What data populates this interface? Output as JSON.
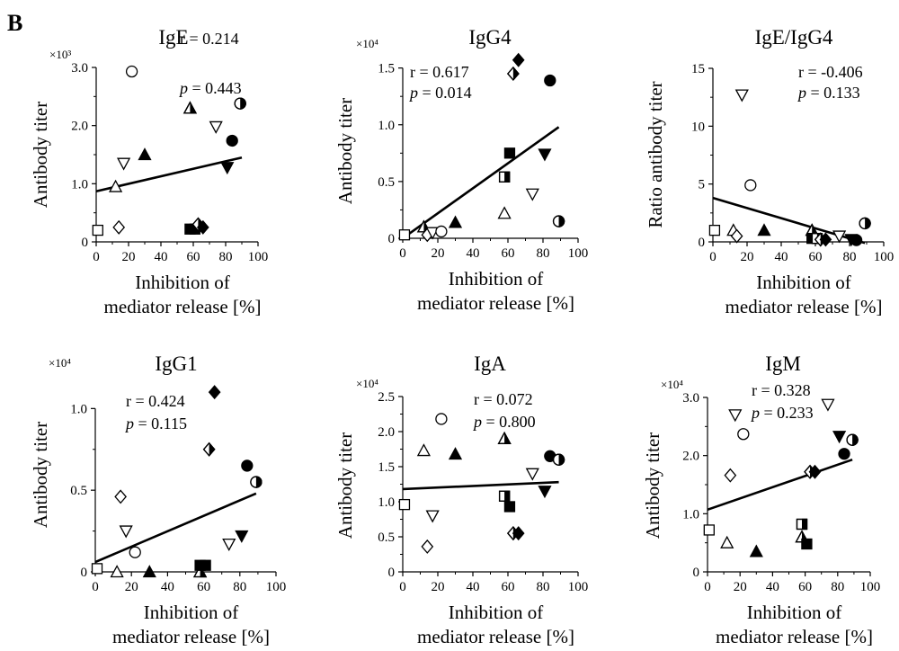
{
  "panel_label": "B",
  "chart_data": [
    {
      "type": "scatter",
      "title": "IgE",
      "ylabel": "Antibody titer",
      "xlabel_lines": [
        "Inhibition of",
        "mediator release [%]"
      ],
      "multiplier_label": "×10³",
      "xlim": [
        0,
        100
      ],
      "ylim": [
        0,
        3.0
      ],
      "x_ticks": [
        0,
        20,
        40,
        60,
        80,
        100
      ],
      "y_ticks": [
        0,
        1.0,
        2.0,
        3.0
      ],
      "y_tick_labels": [
        "0",
        "1.0",
        "2.0",
        "3.0"
      ],
      "stats": {
        "r_label": "r = 0.214",
        "p_prefix": "p",
        "p_rest": " = 0.443"
      },
      "regression": {
        "x": [
          0,
          90
        ],
        "y": [
          0.87,
          1.45
        ]
      },
      "points": [
        {
          "x": 1,
          "y": 0.2,
          "marker": "square-open"
        },
        {
          "x": 12,
          "y": 0.95,
          "marker": "triangle-open"
        },
        {
          "x": 14,
          "y": 0.25,
          "marker": "diamond-open"
        },
        {
          "x": 17,
          "y": 1.35,
          "marker": "triangle-down-open"
        },
        {
          "x": 22,
          "y": 2.93,
          "marker": "circle-open"
        },
        {
          "x": 30,
          "y": 1.5,
          "marker": "triangle"
        },
        {
          "x": 58,
          "y": 2.3,
          "marker": "triangle-half"
        },
        {
          "x": 58,
          "y": 0.22,
          "marker": "square"
        },
        {
          "x": 61,
          "y": 0.22,
          "marker": "square"
        },
        {
          "x": 63,
          "y": 0.3,
          "marker": "diamond-half"
        },
        {
          "x": 66,
          "y": 0.25,
          "marker": "diamond"
        },
        {
          "x": 74,
          "y": 1.98,
          "marker": "triangle-down-open"
        },
        {
          "x": 81,
          "y": 1.28,
          "marker": "triangle-down"
        },
        {
          "x": 84,
          "y": 1.74,
          "marker": "circle"
        },
        {
          "x": 89,
          "y": 2.38,
          "marker": "circle-half"
        }
      ]
    },
    {
      "type": "scatter",
      "title": "IgG4",
      "ylabel": "Antibody titer",
      "xlabel_lines": [
        "Inhibition of",
        "mediator release [%]"
      ],
      "multiplier_label": "×10⁴",
      "xlim": [
        0,
        100
      ],
      "ylim": [
        0,
        1.6
      ],
      "x_ticks": [
        0,
        20,
        40,
        60,
        80,
        100
      ],
      "y_ticks": [
        0,
        0.5,
        1.0,
        1.5
      ],
      "y_tick_labels": [
        "0",
        "0.5",
        "1.0",
        "1.5"
      ],
      "stats": {
        "r_label": "r = 0.617",
        "p_prefix": "p",
        "p_rest": " = 0.014"
      },
      "regression": {
        "x": [
          0,
          89
        ],
        "y": [
          0.0,
          0.98
        ]
      },
      "points": [
        {
          "x": 1,
          "y": 0.03,
          "marker": "square-open"
        },
        {
          "x": 12,
          "y": 0.1,
          "marker": "triangle-half"
        },
        {
          "x": 14,
          "y": 0.03,
          "marker": "diamond-open"
        },
        {
          "x": 17,
          "y": 0.05,
          "marker": "triangle-down-open"
        },
        {
          "x": 22,
          "y": 0.06,
          "marker": "circle-open"
        },
        {
          "x": 30,
          "y": 0.14,
          "marker": "triangle"
        },
        {
          "x": 58,
          "y": 0.22,
          "marker": "triangle-open"
        },
        {
          "x": 58,
          "y": 0.54,
          "marker": "square-half"
        },
        {
          "x": 61,
          "y": 0.75,
          "marker": "square"
        },
        {
          "x": 63,
          "y": 1.45,
          "marker": "diamond-half"
        },
        {
          "x": 66,
          "y": 1.57,
          "marker": "diamond"
        },
        {
          "x": 74,
          "y": 0.39,
          "marker": "triangle-down-open"
        },
        {
          "x": 81,
          "y": 0.74,
          "marker": "triangle-down"
        },
        {
          "x": 84,
          "y": 1.39,
          "marker": "circle"
        },
        {
          "x": 89,
          "y": 0.15,
          "marker": "circle-half"
        }
      ]
    },
    {
      "type": "scatter",
      "title": "IgE/IgG4",
      "ylabel": "Ratio antibody titer",
      "xlabel_lines": [
        "Inhibition of",
        "mediator release [%]"
      ],
      "multiplier_label": "",
      "xlim": [
        0,
        100
      ],
      "ylim": [
        0,
        15
      ],
      "x_ticks": [
        0,
        20,
        40,
        60,
        80,
        100
      ],
      "y_ticks": [
        0,
        5,
        10,
        15
      ],
      "y_tick_labels": [
        "0",
        "5",
        "10",
        "15"
      ],
      "stats": {
        "r_label": "r = -0.406",
        "p_prefix": "p",
        "p_rest": " = 0.133"
      },
      "regression": {
        "x": [
          0,
          89
        ],
        "y": [
          3.8,
          -0.1
        ]
      },
      "points": [
        {
          "x": 1,
          "y": 1.0,
          "marker": "square-open"
        },
        {
          "x": 12,
          "y": 1.0,
          "marker": "triangle-open"
        },
        {
          "x": 14,
          "y": 0.5,
          "marker": "diamond-open"
        },
        {
          "x": 17,
          "y": 12.7,
          "marker": "triangle-down-open"
        },
        {
          "x": 22,
          "y": 4.9,
          "marker": "circle-open"
        },
        {
          "x": 30,
          "y": 1.0,
          "marker": "triangle"
        },
        {
          "x": 58,
          "y": 1.0,
          "marker": "triangle-half"
        },
        {
          "x": 58,
          "y": 0.3,
          "marker": "square"
        },
        {
          "x": 61,
          "y": 0.3,
          "marker": "square-half"
        },
        {
          "x": 63,
          "y": 0.2,
          "marker": "diamond-half"
        },
        {
          "x": 66,
          "y": 0.2,
          "marker": "diamond"
        },
        {
          "x": 74,
          "y": 0.5,
          "marker": "triangle-down-open"
        },
        {
          "x": 81,
          "y": 0.2,
          "marker": "triangle-down"
        },
        {
          "x": 84,
          "y": 0.15,
          "marker": "circle"
        },
        {
          "x": 89,
          "y": 1.6,
          "marker": "circle-half"
        }
      ]
    },
    {
      "type": "scatter",
      "title": "IgG1",
      "ylabel": "Antibody titer",
      "xlabel_lines": [
        "Inhibition of",
        "mediator release [%]"
      ],
      "multiplier_label": "×10⁴",
      "xlim": [
        0,
        100
      ],
      "ylim": [
        0,
        1.2
      ],
      "x_ticks": [
        0,
        20,
        40,
        60,
        80,
        100
      ],
      "y_ticks": [
        0,
        0.5,
        1.0
      ],
      "y_tick_labels": [
        "0",
        "0.5",
        "1.0"
      ],
      "stats": {
        "r_label": "r = 0.424",
        "p_prefix": "p",
        "p_rest": " = 0.115"
      },
      "regression": {
        "x": [
          0,
          89
        ],
        "y": [
          0.06,
          0.48
        ]
      },
      "points": [
        {
          "x": 1,
          "y": 0.02,
          "marker": "square-open"
        },
        {
          "x": 12,
          "y": 0.0,
          "marker": "triangle-open"
        },
        {
          "x": 14,
          "y": 0.46,
          "marker": "diamond-open"
        },
        {
          "x": 17,
          "y": 0.25,
          "marker": "triangle-down-open"
        },
        {
          "x": 22,
          "y": 0.12,
          "marker": "circle-open"
        },
        {
          "x": 30,
          "y": 0.0,
          "marker": "triangle"
        },
        {
          "x": 58,
          "y": 0.0,
          "marker": "triangle-half"
        },
        {
          "x": 58,
          "y": 0.04,
          "marker": "square"
        },
        {
          "x": 61,
          "y": 0.04,
          "marker": "square"
        },
        {
          "x": 63,
          "y": 0.75,
          "marker": "diamond-half"
        },
        {
          "x": 66,
          "y": 1.1,
          "marker": "diamond"
        },
        {
          "x": 74,
          "y": 0.17,
          "marker": "triangle-down-open"
        },
        {
          "x": 81,
          "y": 0.22,
          "marker": "triangle-down"
        },
        {
          "x": 84,
          "y": 0.65,
          "marker": "circle"
        },
        {
          "x": 89,
          "y": 0.55,
          "marker": "circle-half"
        }
      ]
    },
    {
      "type": "scatter",
      "title": "IgA",
      "ylabel": "Antibody titer",
      "xlabel_lines": [
        "Inhibition of",
        "mediator release [%]"
      ],
      "multiplier_label": "×10⁴",
      "xlim": [
        0,
        100
      ],
      "ylim": [
        0,
        2.5
      ],
      "x_ticks": [
        0,
        20,
        40,
        60,
        80,
        100
      ],
      "y_ticks": [
        0,
        0.5,
        1.0,
        1.5,
        2.0,
        2.5
      ],
      "y_tick_labels": [
        "0",
        "0.5",
        "1.0",
        "1.5",
        "2.0",
        "2.5"
      ],
      "stats": {
        "r_label": "r = 0.072",
        "p_prefix": "p",
        "p_rest": " = 0.800"
      },
      "regression": {
        "x": [
          0,
          89
        ],
        "y": [
          1.18,
          1.28
        ]
      },
      "points": [
        {
          "x": 1,
          "y": 0.96,
          "marker": "square-open"
        },
        {
          "x": 12,
          "y": 1.73,
          "marker": "triangle-open"
        },
        {
          "x": 14,
          "y": 0.36,
          "marker": "diamond-open"
        },
        {
          "x": 17,
          "y": 0.8,
          "marker": "triangle-down-open"
        },
        {
          "x": 22,
          "y": 2.18,
          "marker": "circle-open"
        },
        {
          "x": 30,
          "y": 1.68,
          "marker": "triangle"
        },
        {
          "x": 58,
          "y": 1.9,
          "marker": "triangle-half"
        },
        {
          "x": 58,
          "y": 1.08,
          "marker": "square-half"
        },
        {
          "x": 61,
          "y": 0.93,
          "marker": "square"
        },
        {
          "x": 63,
          "y": 0.55,
          "marker": "diamond-half"
        },
        {
          "x": 66,
          "y": 0.55,
          "marker": "diamond"
        },
        {
          "x": 74,
          "y": 1.4,
          "marker": "triangle-down-open"
        },
        {
          "x": 81,
          "y": 1.15,
          "marker": "triangle-down"
        },
        {
          "x": 84,
          "y": 1.65,
          "marker": "circle"
        },
        {
          "x": 89,
          "y": 1.6,
          "marker": "circle-half"
        }
      ]
    },
    {
      "type": "scatter",
      "title": "IgM",
      "ylabel": "Antibody titer",
      "xlabel_lines": [
        "Inhibition of",
        "mediator release [%]"
      ],
      "multiplier_label": "×10⁴",
      "xlim": [
        0,
        100
      ],
      "ylim": [
        0,
        3.0
      ],
      "x_ticks": [
        0,
        20,
        40,
        60,
        80,
        100
      ],
      "y_ticks": [
        0,
        1.0,
        2.0,
        3.0
      ],
      "y_tick_labels": [
        "0",
        "1.0",
        "2.0",
        "3.0"
      ],
      "stats": {
        "r_label": "r = 0.328",
        "p_prefix": "p",
        "p_rest": " = 0.233"
      },
      "regression": {
        "x": [
          0,
          89
        ],
        "y": [
          1.07,
          1.93
        ]
      },
      "points": [
        {
          "x": 1,
          "y": 0.72,
          "marker": "square-open"
        },
        {
          "x": 12,
          "y": 0.5,
          "marker": "triangle-open"
        },
        {
          "x": 14,
          "y": 1.66,
          "marker": "diamond-open"
        },
        {
          "x": 17,
          "y": 2.7,
          "marker": "triangle-down-open"
        },
        {
          "x": 22,
          "y": 2.37,
          "marker": "circle-open"
        },
        {
          "x": 30,
          "y": 0.35,
          "marker": "triangle"
        },
        {
          "x": 58,
          "y": 0.6,
          "marker": "triangle-half"
        },
        {
          "x": 58,
          "y": 0.82,
          "marker": "square-half"
        },
        {
          "x": 61,
          "y": 0.48,
          "marker": "square"
        },
        {
          "x": 63,
          "y": 1.72,
          "marker": "diamond-half"
        },
        {
          "x": 66,
          "y": 1.72,
          "marker": "diamond"
        },
        {
          "x": 74,
          "y": 2.88,
          "marker": "triangle-down-open"
        },
        {
          "x": 81,
          "y": 2.33,
          "marker": "triangle-down"
        },
        {
          "x": 84,
          "y": 2.03,
          "marker": "circle"
        },
        {
          "x": 89,
          "y": 2.27,
          "marker": "circle-half"
        }
      ]
    }
  ]
}
